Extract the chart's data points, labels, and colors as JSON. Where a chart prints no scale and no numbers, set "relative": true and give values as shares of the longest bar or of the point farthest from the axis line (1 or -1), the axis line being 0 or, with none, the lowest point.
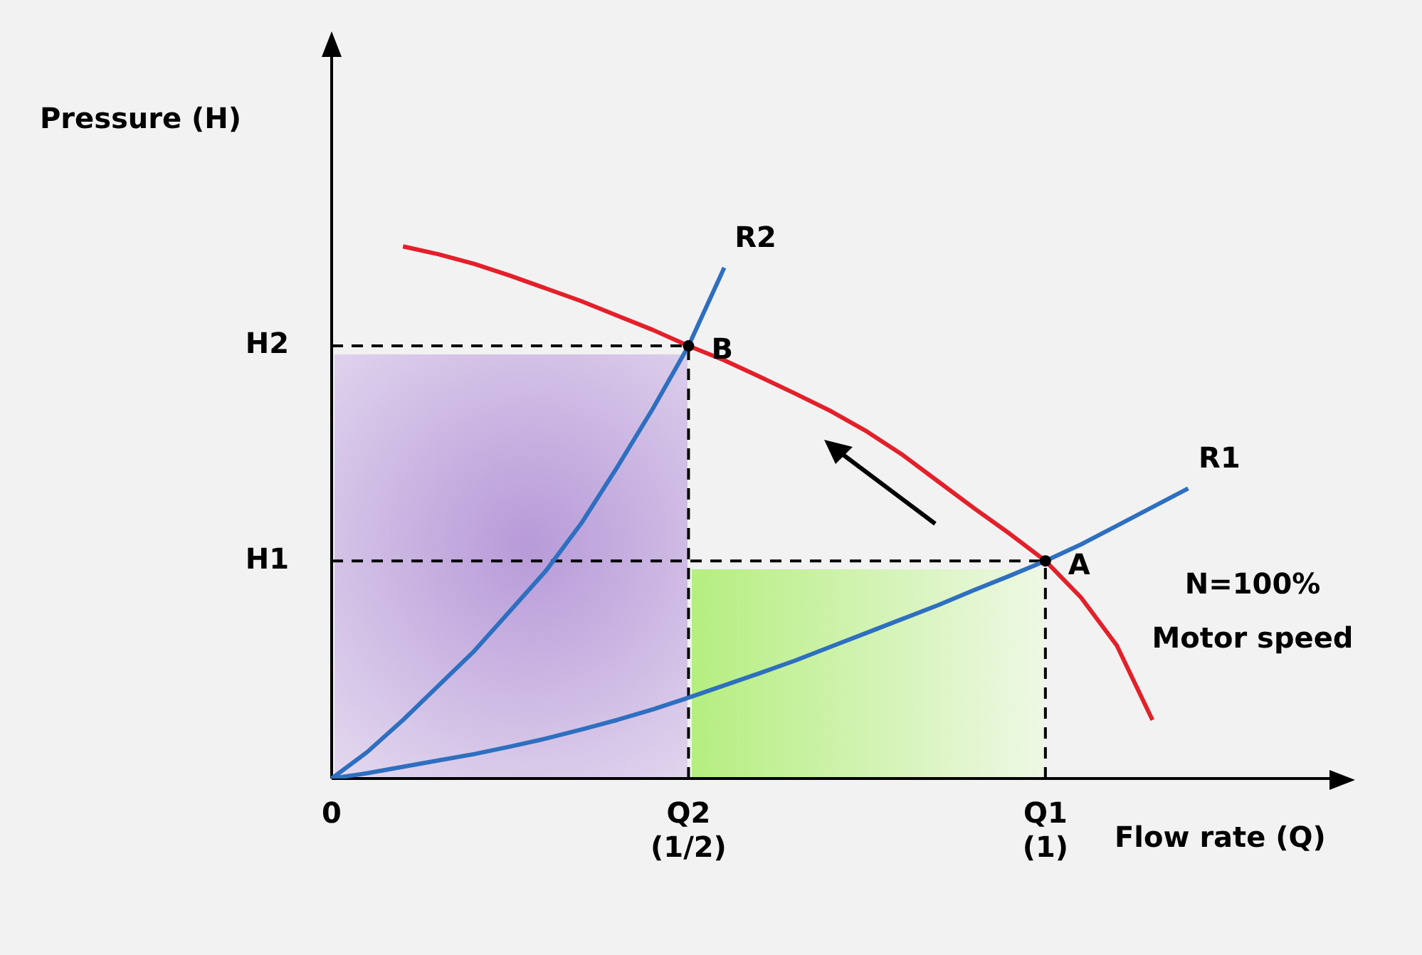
{
  "chart_data": {
    "type": "line",
    "relative": true,
    "xlabel": "Flow rate (Q)",
    "ylabel": "Pressure (H)",
    "categories": [
      "0",
      null,
      null,
      null,
      null,
      null,
      null,
      null,
      null,
      null,
      "Q2 (1/2)",
      null,
      null,
      null,
      null,
      null,
      null,
      null,
      null,
      null,
      "Q1 (1)",
      null,
      null,
      null,
      null,
      null,
      null,
      null,
      null
    ],
    "grid": false,
    "legend": false,
    "marker": "none",
    "line_style": "solid",
    "series": [
      {
        "color": "#e3202a",
        "values": [
          null,
          null,
          1.0,
          0.985,
          0.967,
          0.945,
          0.921,
          0.897,
          0.87,
          0.843,
          0.813,
          0.786,
          0.755,
          0.723,
          0.69,
          0.652,
          0.608,
          0.558,
          0.508,
          0.46,
          0.409,
          0.34,
          0.25,
          0.11,
          null,
          null,
          null,
          null,
          null
        ]
      },
      {
        "name": "R2",
        "color": "#2e6fc0",
        "values": [
          0,
          0.05,
          0.11,
          0.175,
          0.24,
          0.315,
          0.39,
          0.48,
          0.585,
          0.695,
          0.813,
          0.96,
          null,
          null,
          null,
          null,
          null,
          null,
          null,
          null,
          null,
          null,
          null,
          null,
          null,
          null,
          null,
          null,
          null
        ]
      },
      {
        "name": "R1",
        "color": "#2e6fc0",
        "values": [
          0,
          0.01,
          0.022,
          0.034,
          0.046,
          0.06,
          0.075,
          0.092,
          0.11,
          0.13,
          0.152,
          0.175,
          0.198,
          0.222,
          0.248,
          0.274,
          0.3,
          0.326,
          0.354,
          0.381,
          0.409,
          0.44,
          0.475,
          0.51,
          0.545,
          null,
          null,
          null,
          null
        ]
      }
    ],
    "ref_lines": [
      {
        "axis": "x",
        "value": "Q2 (1/2)",
        "line_style": "dashed"
      },
      {
        "axis": "x",
        "value": "Q1 (1)",
        "line_style": "dashed"
      },
      {
        "axis": "y",
        "value": 0.813,
        "label": "H2",
        "line_style": "dashed"
      },
      {
        "axis": "y",
        "value": 0.409,
        "label": "H1",
        "line_style": "dashed"
      }
    ],
    "annotations": [
      {
        "text": "B",
        "x": "Q2 (1/2)",
        "y": 0.813
      },
      {
        "text": "A",
        "x": "Q1 (1)",
        "y": 0.409
      },
      "N=100%\nMotor speed"
    ]
  }
}
